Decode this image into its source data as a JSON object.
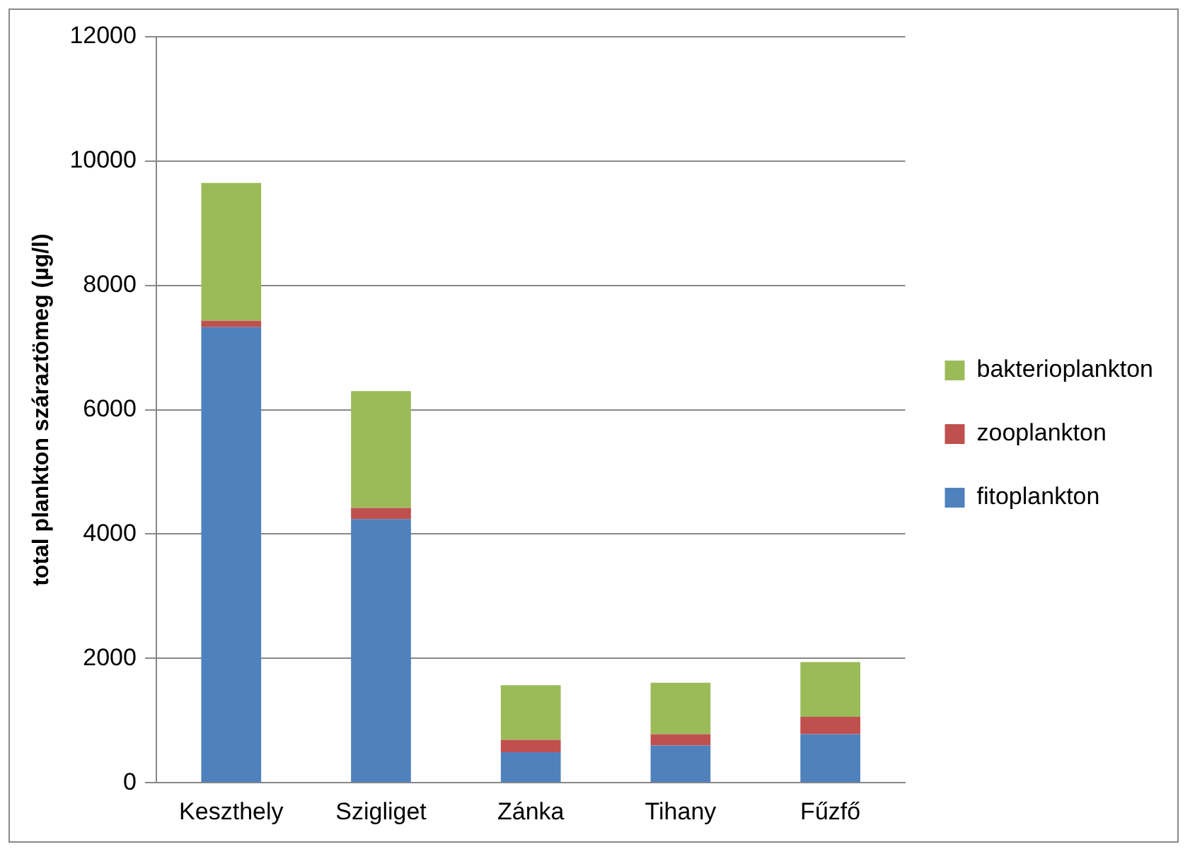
{
  "chart_data": {
    "type": "bar",
    "stacked": true,
    "ylabel": "total plankton száraztömeg (µg/l)",
    "categories": [
      "Keszthely",
      "Szigliget",
      "Zánka",
      "Tihany",
      "Fűzfő"
    ],
    "series": [
      {
        "name": "fitoplankton",
        "color": "#4f81bd",
        "values": [
          7330,
          4240,
          490,
          600,
          780
        ]
      },
      {
        "name": "zooplankton",
        "color": "#c0504d",
        "values": [
          100,
          180,
          200,
          180,
          280
        ]
      },
      {
        "name": "bakterioplankton",
        "color": "#9bbb59",
        "values": [
          2220,
          1880,
          880,
          830,
          880
        ]
      }
    ],
    "ylim": [
      0,
      12000
    ],
    "yticks": [
      0,
      2000,
      4000,
      6000,
      8000,
      10000,
      12000
    ],
    "grid": "y",
    "legend": "right"
  }
}
